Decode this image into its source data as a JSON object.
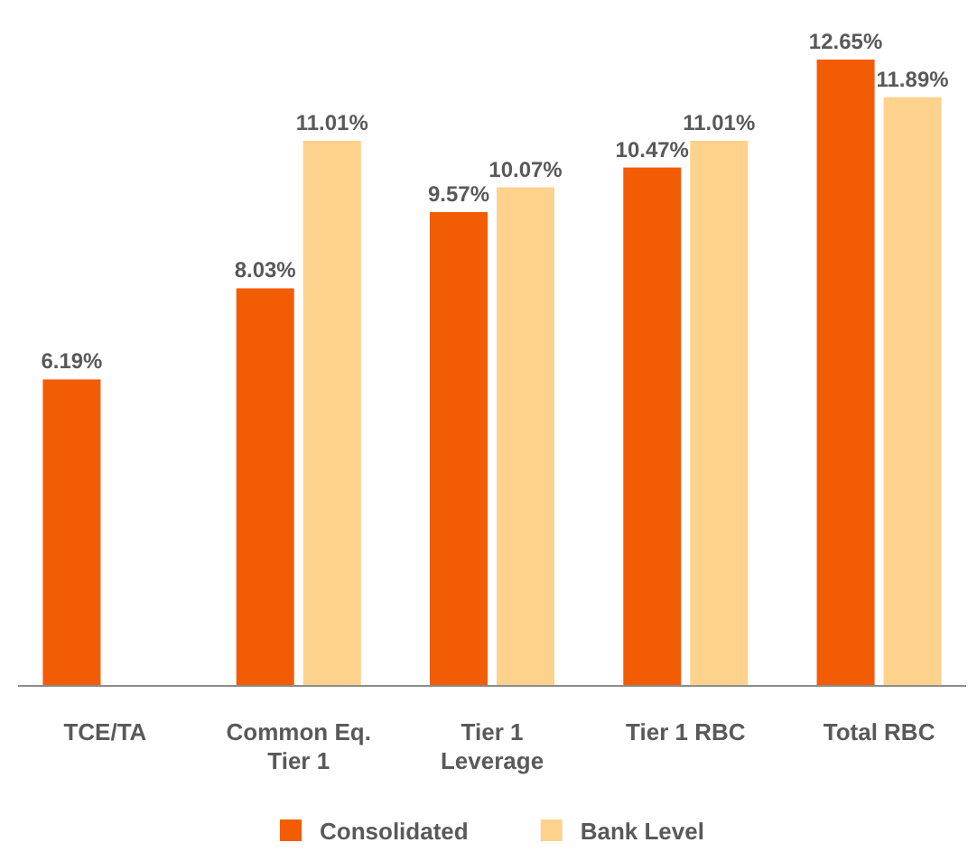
{
  "chart_data": {
    "type": "bar",
    "categories": [
      "TCE/TA",
      "Common Eq. Tier 1",
      "Tier 1 Leverage",
      "Tier 1 RBC",
      "Total RBC"
    ],
    "series": [
      {
        "name": "Consolidated",
        "color": "#f25c05",
        "values": [
          6.19,
          8.03,
          9.57,
          10.47,
          12.65
        ],
        "value_labels": [
          "6.19%",
          "8.03%",
          "9.57%",
          "10.47%",
          "12.65%"
        ]
      },
      {
        "name": "Bank Level",
        "color": "#fdd28c",
        "values": [
          null,
          11.01,
          10.07,
          11.01,
          11.89
        ],
        "value_labels": [
          null,
          "11.01%",
          "10.07%",
          "11.01%",
          "11.89%"
        ]
      }
    ],
    "legend": "bottom"
  }
}
